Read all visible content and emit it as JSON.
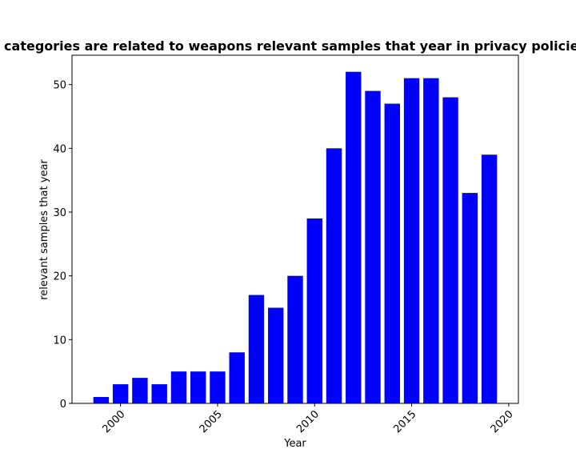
{
  "chart_data": {
    "type": "bar",
    "title": "categories are related to weapons relevant samples that year in privacy policies",
    "xlabel": "Year",
    "ylabel": "relevant samples that year",
    "categories": [
      1999,
      2000,
      2001,
      2002,
      2003,
      2004,
      2005,
      2006,
      2007,
      2008,
      2009,
      2010,
      2011,
      2012,
      2013,
      2014,
      2015,
      2016,
      2017,
      2018,
      2019
    ],
    "values": [
      1,
      3,
      4,
      3,
      5,
      5,
      5,
      8,
      17,
      15,
      20,
      29,
      40,
      52,
      49,
      47,
      51,
      51,
      48,
      33,
      39
    ],
    "xlim": [
      1997.5,
      2020.5
    ],
    "ylim": [
      0,
      54.6
    ],
    "xticks": [
      2000,
      2005,
      2010,
      2015,
      2020
    ],
    "yticks": [
      0,
      10,
      20,
      30,
      40,
      50
    ],
    "bar_color": "#0000ff",
    "grid": false
  }
}
